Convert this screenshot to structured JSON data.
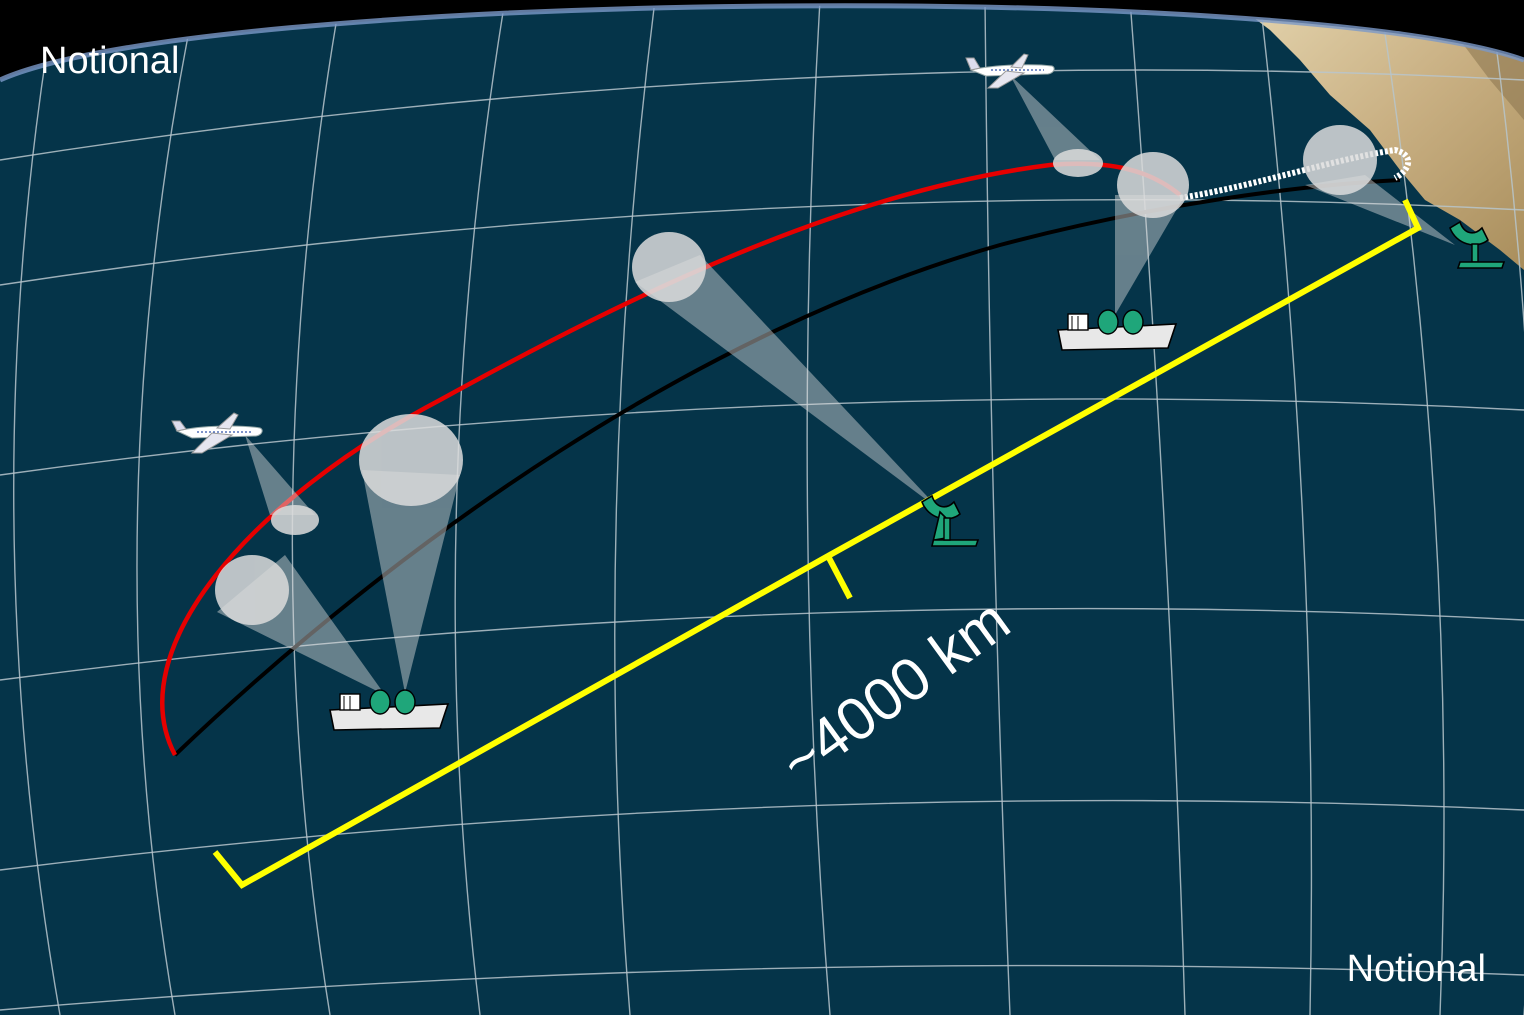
{
  "labels": {
    "top_left": "Notional",
    "bottom_right": "Notional",
    "distance": "~4000 km"
  },
  "colors": {
    "ocean": "#053449",
    "grid": "#b8c6cc",
    "trajectory_red": "#e60000",
    "trajectory_white": "#ffffff",
    "ground_track": "#000000",
    "bracket": "#ffff00",
    "sensor_green": "#1fa67a",
    "sensor_cone": "#dcdcdc",
    "land": "#c8b48a"
  },
  "icons": {
    "airplane": "airplane-icon",
    "ship": "ship-radar-icon",
    "ground_radar": "radar-dish-icon"
  }
}
